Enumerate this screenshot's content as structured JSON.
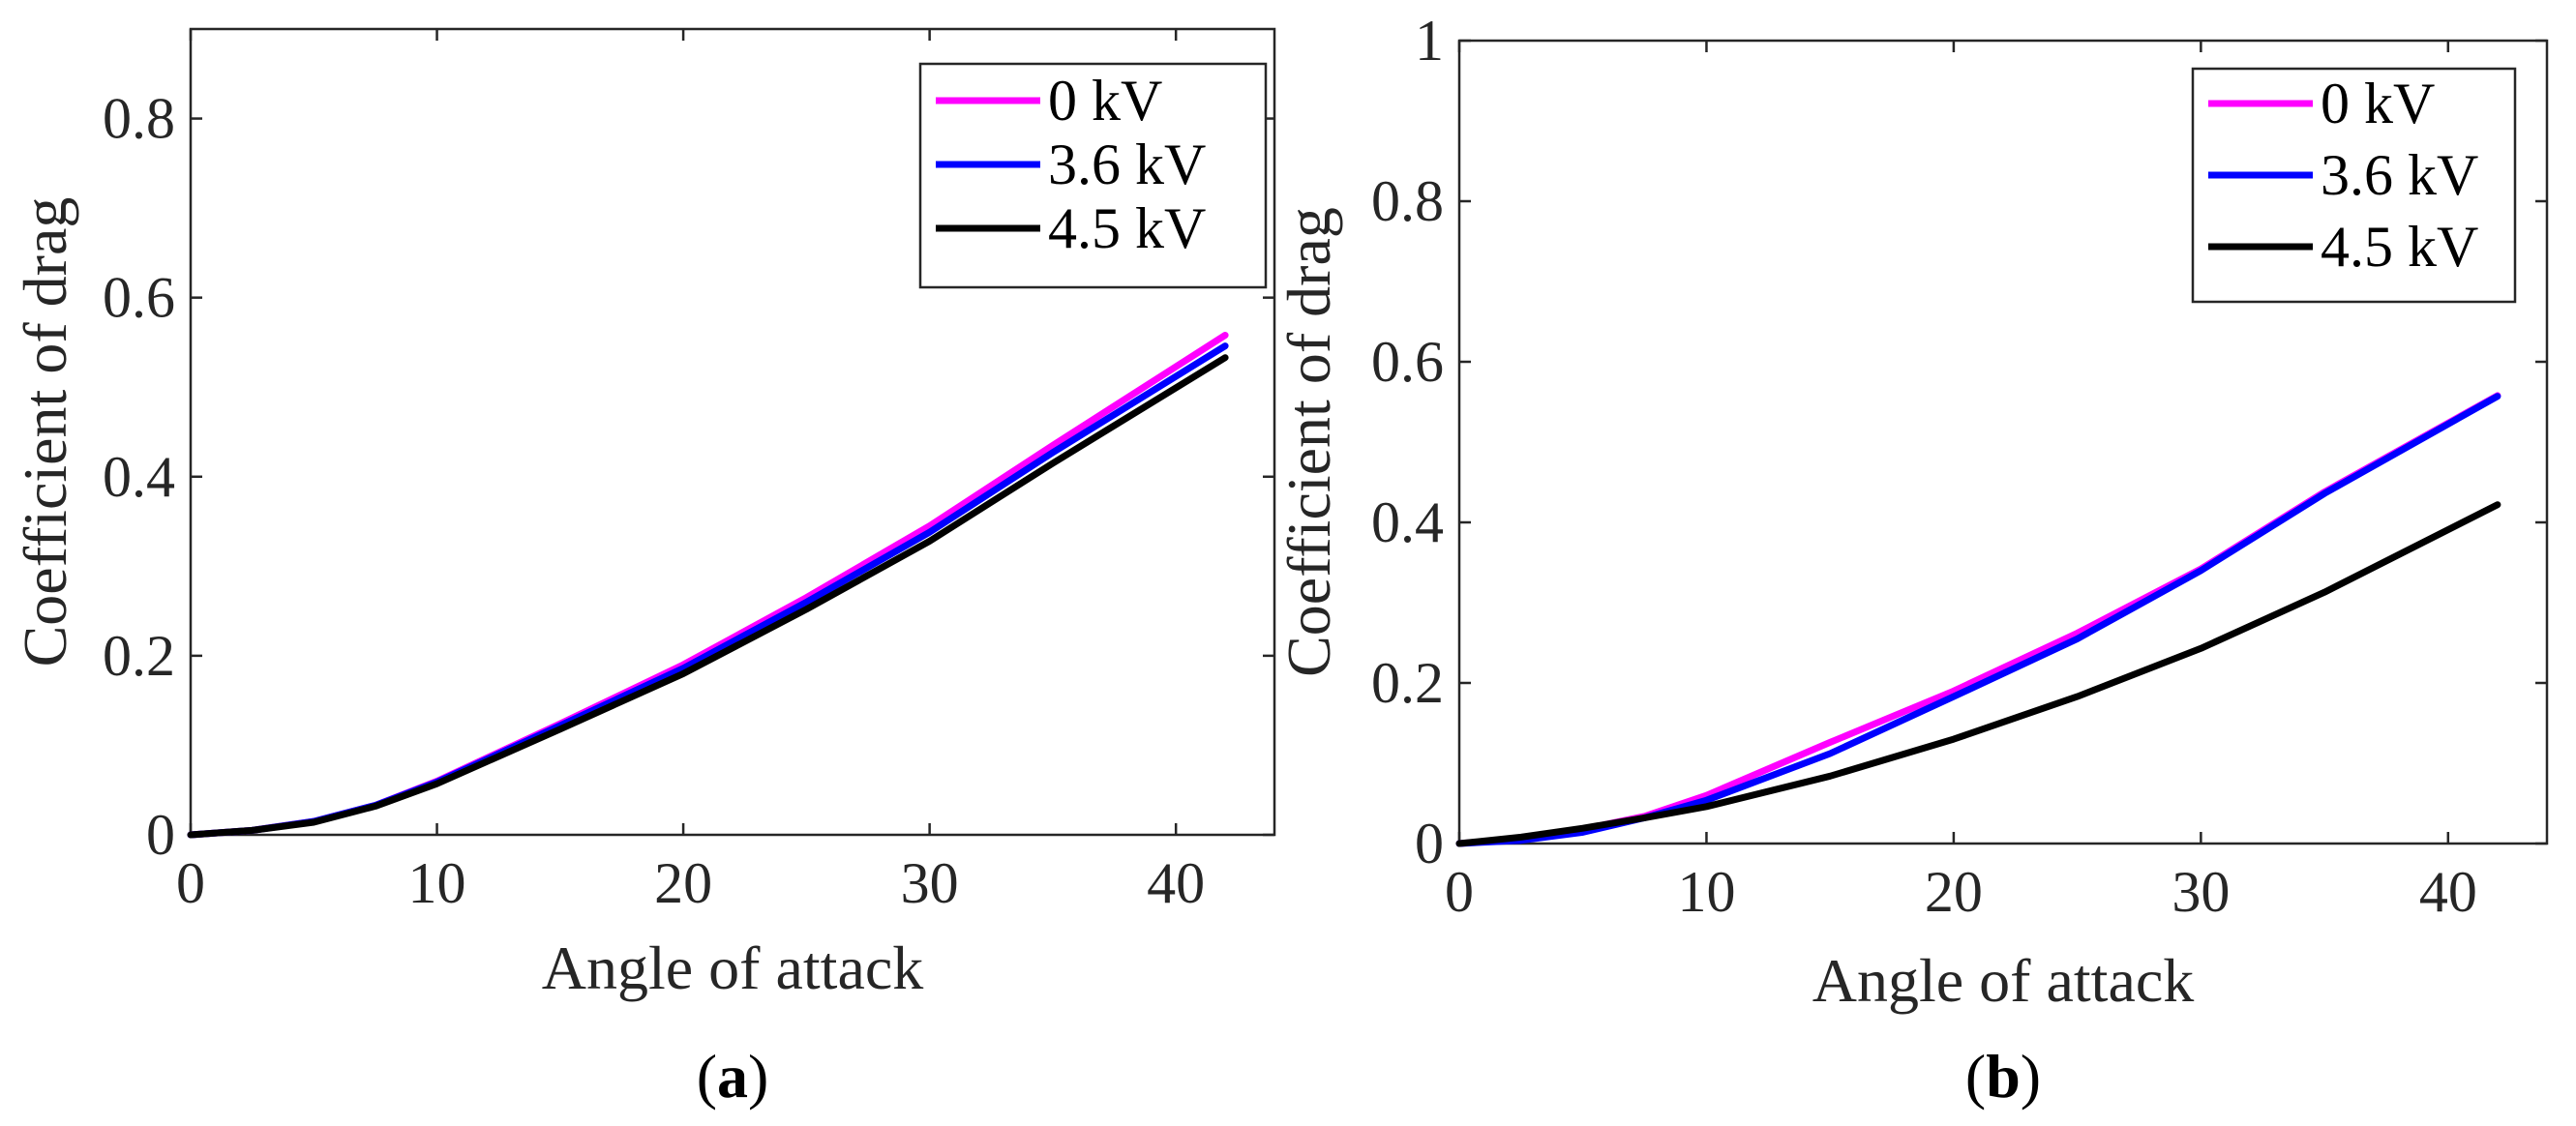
{
  "chart_data": [
    {
      "type": "line",
      "caption": {
        "open": "(",
        "letter": "a",
        "close": ")"
      },
      "xlabel": "Angle of attack",
      "ylabel": "Coefficient of drag",
      "xlim": [
        0,
        44
      ],
      "ylim": [
        0,
        0.9
      ],
      "xticks": [
        0,
        10,
        20,
        30,
        40
      ],
      "yticks": [
        0,
        0.2,
        0.4,
        0.6,
        0.8
      ],
      "xtick_labels": [
        "0",
        "10",
        "20",
        "30",
        "40"
      ],
      "ytick_labels": [
        "0",
        "0.2",
        "0.4",
        "0.6",
        "0.8"
      ],
      "legend_position": "top-right",
      "grid": false,
      "x": [
        0,
        2.5,
        5,
        7.5,
        10,
        15,
        20,
        25,
        30,
        35,
        42
      ],
      "series": [
        {
          "name": "0 kV",
          "color": "#ff00ff",
          "values": [
            0.0,
            0.005,
            0.015,
            0.033,
            0.06,
            0.124,
            0.19,
            0.265,
            0.345,
            0.435,
            0.558
          ]
        },
        {
          "name": "3.6 kV",
          "color": "#0000ff",
          "values": [
            0.0,
            0.005,
            0.015,
            0.033,
            0.059,
            0.122,
            0.186,
            0.26,
            0.338,
            0.427,
            0.546
          ]
        },
        {
          "name": "4.5 kV",
          "color": "#000000",
          "values": [
            0.0,
            0.005,
            0.014,
            0.032,
            0.057,
            0.118,
            0.18,
            0.252,
            0.328,
            0.415,
            0.533
          ]
        }
      ]
    },
    {
      "type": "line",
      "caption": {
        "open": "(",
        "letter": "b",
        "close": ")"
      },
      "xlabel": "Angle of attack",
      "ylabel": "Coefficient of drag",
      "xlim": [
        0,
        44
      ],
      "ylim": [
        0,
        1
      ],
      "xticks": [
        0,
        10,
        20,
        30,
        40
      ],
      "yticks": [
        0,
        0.2,
        0.4,
        0.6,
        0.8,
        1
      ],
      "xtick_labels": [
        "0",
        "10",
        "20",
        "30",
        "40"
      ],
      "ytick_labels": [
        "0",
        "0.2",
        "0.4",
        "0.6",
        "0.8",
        "1"
      ],
      "legend_position": "top-right",
      "grid": false,
      "x": [
        0,
        2.5,
        5,
        7.5,
        10,
        15,
        20,
        25,
        30,
        35,
        42
      ],
      "series": [
        {
          "name": "0 kV",
          "color": "#ff00ff",
          "values": [
            0.0,
            0.006,
            0.018,
            0.034,
            0.06,
            0.126,
            0.19,
            0.262,
            0.342,
            0.438,
            0.558
          ]
        },
        {
          "name": "3.6 kV",
          "color": "#0000ff",
          "values": [
            0.0,
            0.004,
            0.014,
            0.032,
            0.054,
            0.112,
            0.183,
            0.255,
            0.34,
            0.436,
            0.557
          ]
        },
        {
          "name": "4.5 kV",
          "color": "#000000",
          "values": [
            0.0,
            0.008,
            0.019,
            0.032,
            0.046,
            0.084,
            0.13,
            0.183,
            0.243,
            0.313,
            0.422
          ]
        }
      ]
    }
  ]
}
